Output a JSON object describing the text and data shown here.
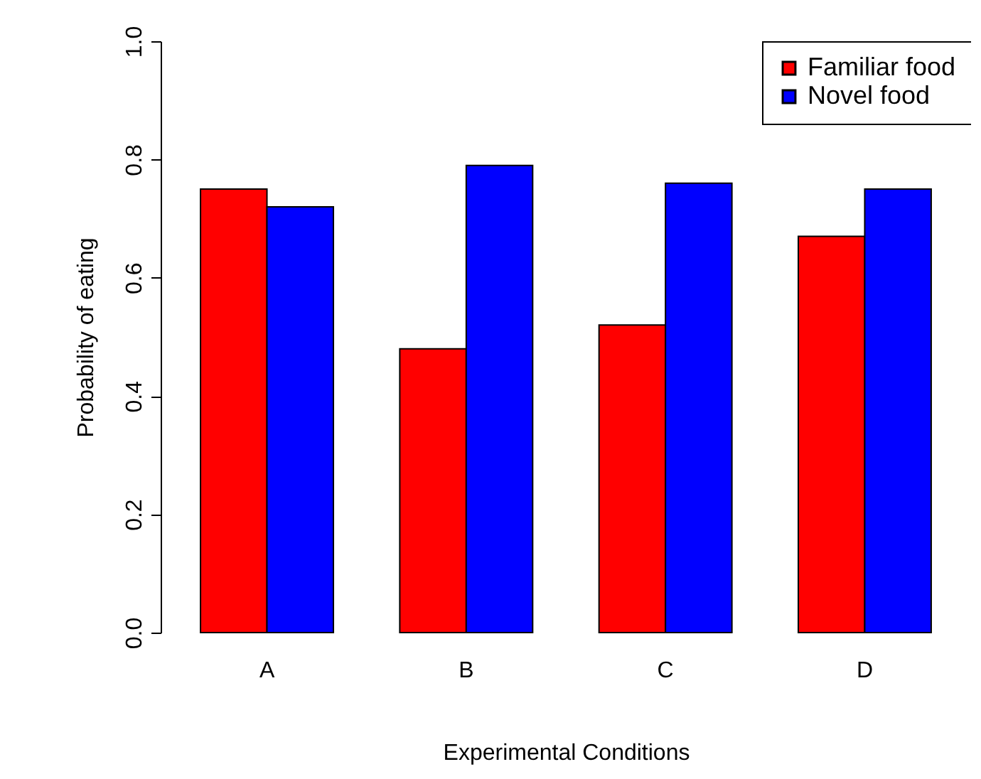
{
  "chart_data": {
    "type": "bar",
    "xlabel": "Experimental Conditions",
    "ylabel": "Probability of eating",
    "categories": [
      "A",
      "B",
      "C",
      "D"
    ],
    "series": [
      {
        "name": "Familiar food",
        "color": "#ff0000",
        "values": [
          0.75,
          0.48,
          0.52,
          0.67
        ]
      },
      {
        "name": "Novel food",
        "color": "#0000ff",
        "values": [
          0.72,
          0.79,
          0.76,
          0.75
        ]
      }
    ],
    "ylim": [
      0,
      1
    ],
    "yticks": [
      {
        "value": 0,
        "label": "0.0"
      },
      0.2,
      0.4,
      0.6,
      0.8,
      {
        "value": 1,
        "label": "1.0"
      }
    ],
    "legend": "top right"
  }
}
